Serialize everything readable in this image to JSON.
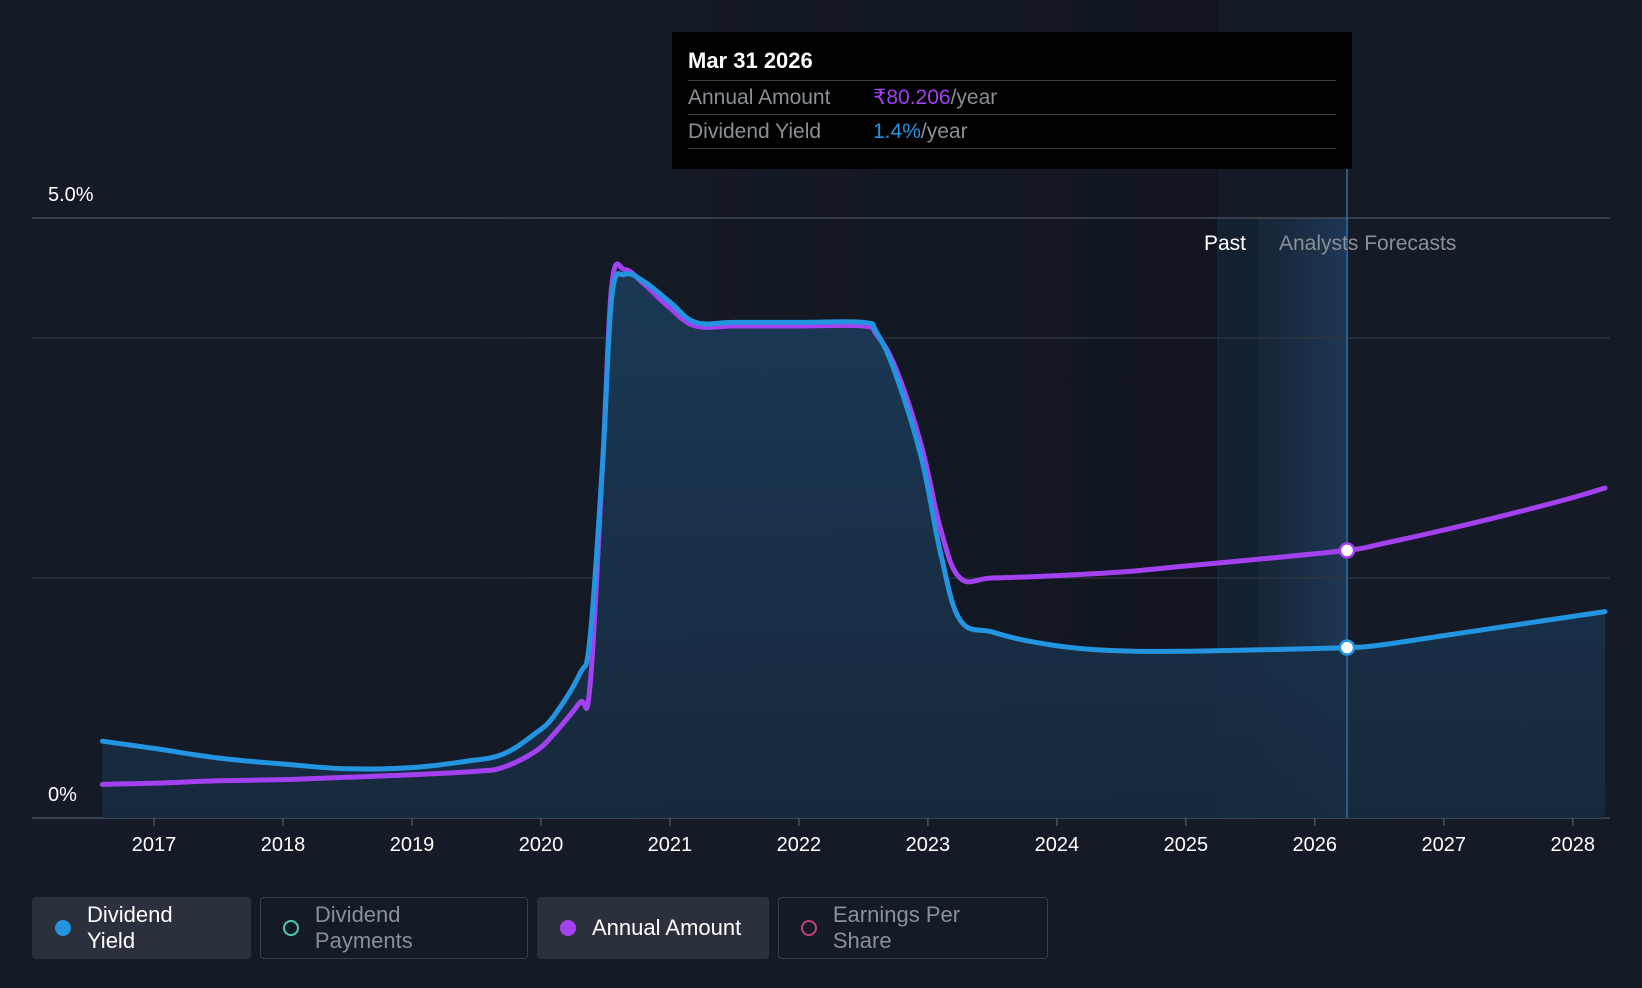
{
  "tooltip": {
    "date": "Mar 31 2026",
    "annual_amount_label": "Annual Amount",
    "annual_amount_value": "₹80.206",
    "annual_amount_unit": "/year",
    "dividend_yield_label": "Dividend Yield",
    "dividend_yield_value": "1.4%",
    "dividend_yield_unit": "/year"
  },
  "colors": {
    "background": "#151b26",
    "dividend_yield": "#2394df",
    "annual_amount": "#a341f0",
    "dividend_payments": "#51c8b5",
    "earnings_per_share": "#c2417a",
    "forecast_highlight": "#1d3a5a"
  },
  "legend": [
    {
      "label": "Dividend Yield",
      "active": true,
      "color": "#2394df",
      "filled": true
    },
    {
      "label": "Dividend Payments",
      "active": false,
      "color": "#51c8b5",
      "filled": false
    },
    {
      "label": "Annual Amount",
      "active": true,
      "color": "#a341f0",
      "filled": true
    },
    {
      "label": "Earnings Per Share",
      "active": false,
      "color": "#c2417a",
      "filled": false
    }
  ],
  "chart_data": {
    "type": "line",
    "title": "",
    "xlabel": "",
    "ylabel": "",
    "ylim": [
      0,
      5.0
    ],
    "xlim": [
      2016.55,
      2028.25
    ],
    "y_tick_labels": [
      "0%",
      "5.0%"
    ],
    "y_ticks": [
      0,
      5.0
    ],
    "x_ticks": [
      2017,
      2018,
      2019,
      2020,
      2021,
      2022,
      2023,
      2024,
      2025,
      2026,
      2027,
      2028
    ],
    "x_tick_labels": [
      "2017",
      "2018",
      "2019",
      "2020",
      "2021",
      "2022",
      "2023",
      "2024",
      "2025",
      "2026",
      "2027",
      "2028"
    ],
    "grid_lines": [
      0,
      2.0,
      4.0,
      5.0
    ],
    "past_label": "Past",
    "forecast_label": "Analysts Forecasts",
    "past_band_start": 2025.25,
    "forecast_start": 2025.57,
    "cursor_x": 2026.25,
    "series": [
      {
        "name": "Dividend Yield",
        "color": "#2394df",
        "points": [
          [
            2016.6,
            0.64
          ],
          [
            2017.0,
            0.58
          ],
          [
            2017.5,
            0.5
          ],
          [
            2018.0,
            0.45
          ],
          [
            2018.5,
            0.41
          ],
          [
            2019.0,
            0.42
          ],
          [
            2019.4,
            0.47
          ],
          [
            2019.7,
            0.53
          ],
          [
            2019.95,
            0.7
          ],
          [
            2020.1,
            0.85
          ],
          [
            2020.3,
            1.2
          ],
          [
            2020.38,
            1.5
          ],
          [
            2020.48,
            3.0
          ],
          [
            2020.55,
            4.35
          ],
          [
            2020.65,
            4.53
          ],
          [
            2020.8,
            4.47
          ],
          [
            2021.0,
            4.3
          ],
          [
            2021.2,
            4.13
          ],
          [
            2021.5,
            4.13
          ],
          [
            2022.0,
            4.13
          ],
          [
            2022.5,
            4.13
          ],
          [
            2022.6,
            4.05
          ],
          [
            2022.75,
            3.7
          ],
          [
            2022.95,
            3.0
          ],
          [
            2023.1,
            2.2
          ],
          [
            2023.25,
            1.65
          ],
          [
            2023.5,
            1.55
          ],
          [
            2023.8,
            1.47
          ],
          [
            2024.2,
            1.41
          ],
          [
            2024.6,
            1.39
          ],
          [
            2025.0,
            1.39
          ],
          [
            2025.5,
            1.4
          ],
          [
            2026.25,
            1.42
          ],
          [
            2026.5,
            1.44
          ],
          [
            2027.0,
            1.52
          ],
          [
            2027.5,
            1.6
          ],
          [
            2028.0,
            1.68
          ],
          [
            2028.25,
            1.72
          ]
        ]
      },
      {
        "name": "Annual Amount",
        "color": "#a341f0",
        "points": [
          [
            2016.6,
            0.28
          ],
          [
            2017.0,
            0.29
          ],
          [
            2017.5,
            0.31
          ],
          [
            2018.0,
            0.32
          ],
          [
            2018.5,
            0.34
          ],
          [
            2019.0,
            0.36
          ],
          [
            2019.5,
            0.39
          ],
          [
            2019.7,
            0.42
          ],
          [
            2019.95,
            0.55
          ],
          [
            2020.1,
            0.7
          ],
          [
            2020.3,
            0.96
          ],
          [
            2020.38,
            1.1
          ],
          [
            2020.48,
            3.0
          ],
          [
            2020.55,
            4.45
          ],
          [
            2020.65,
            4.57
          ],
          [
            2020.8,
            4.45
          ],
          [
            2021.0,
            4.25
          ],
          [
            2021.2,
            4.1
          ],
          [
            2021.5,
            4.1
          ],
          [
            2022.0,
            4.1
          ],
          [
            2022.5,
            4.1
          ],
          [
            2022.6,
            4.03
          ],
          [
            2022.75,
            3.75
          ],
          [
            2022.95,
            3.1
          ],
          [
            2023.1,
            2.4
          ],
          [
            2023.25,
            2.0
          ],
          [
            2023.5,
            2.0
          ],
          [
            2024.0,
            2.02
          ],
          [
            2024.5,
            2.05
          ],
          [
            2025.0,
            2.1
          ],
          [
            2025.5,
            2.15
          ],
          [
            2026.25,
            2.23
          ],
          [
            2026.5,
            2.28
          ],
          [
            2027.0,
            2.4
          ],
          [
            2027.5,
            2.53
          ],
          [
            2028.0,
            2.67
          ],
          [
            2028.25,
            2.75
          ]
        ]
      }
    ],
    "markers": [
      {
        "series": "Annual Amount",
        "x": 2026.25,
        "y": 2.23
      },
      {
        "series": "Dividend Yield",
        "x": 2026.25,
        "y": 1.42
      }
    ]
  }
}
